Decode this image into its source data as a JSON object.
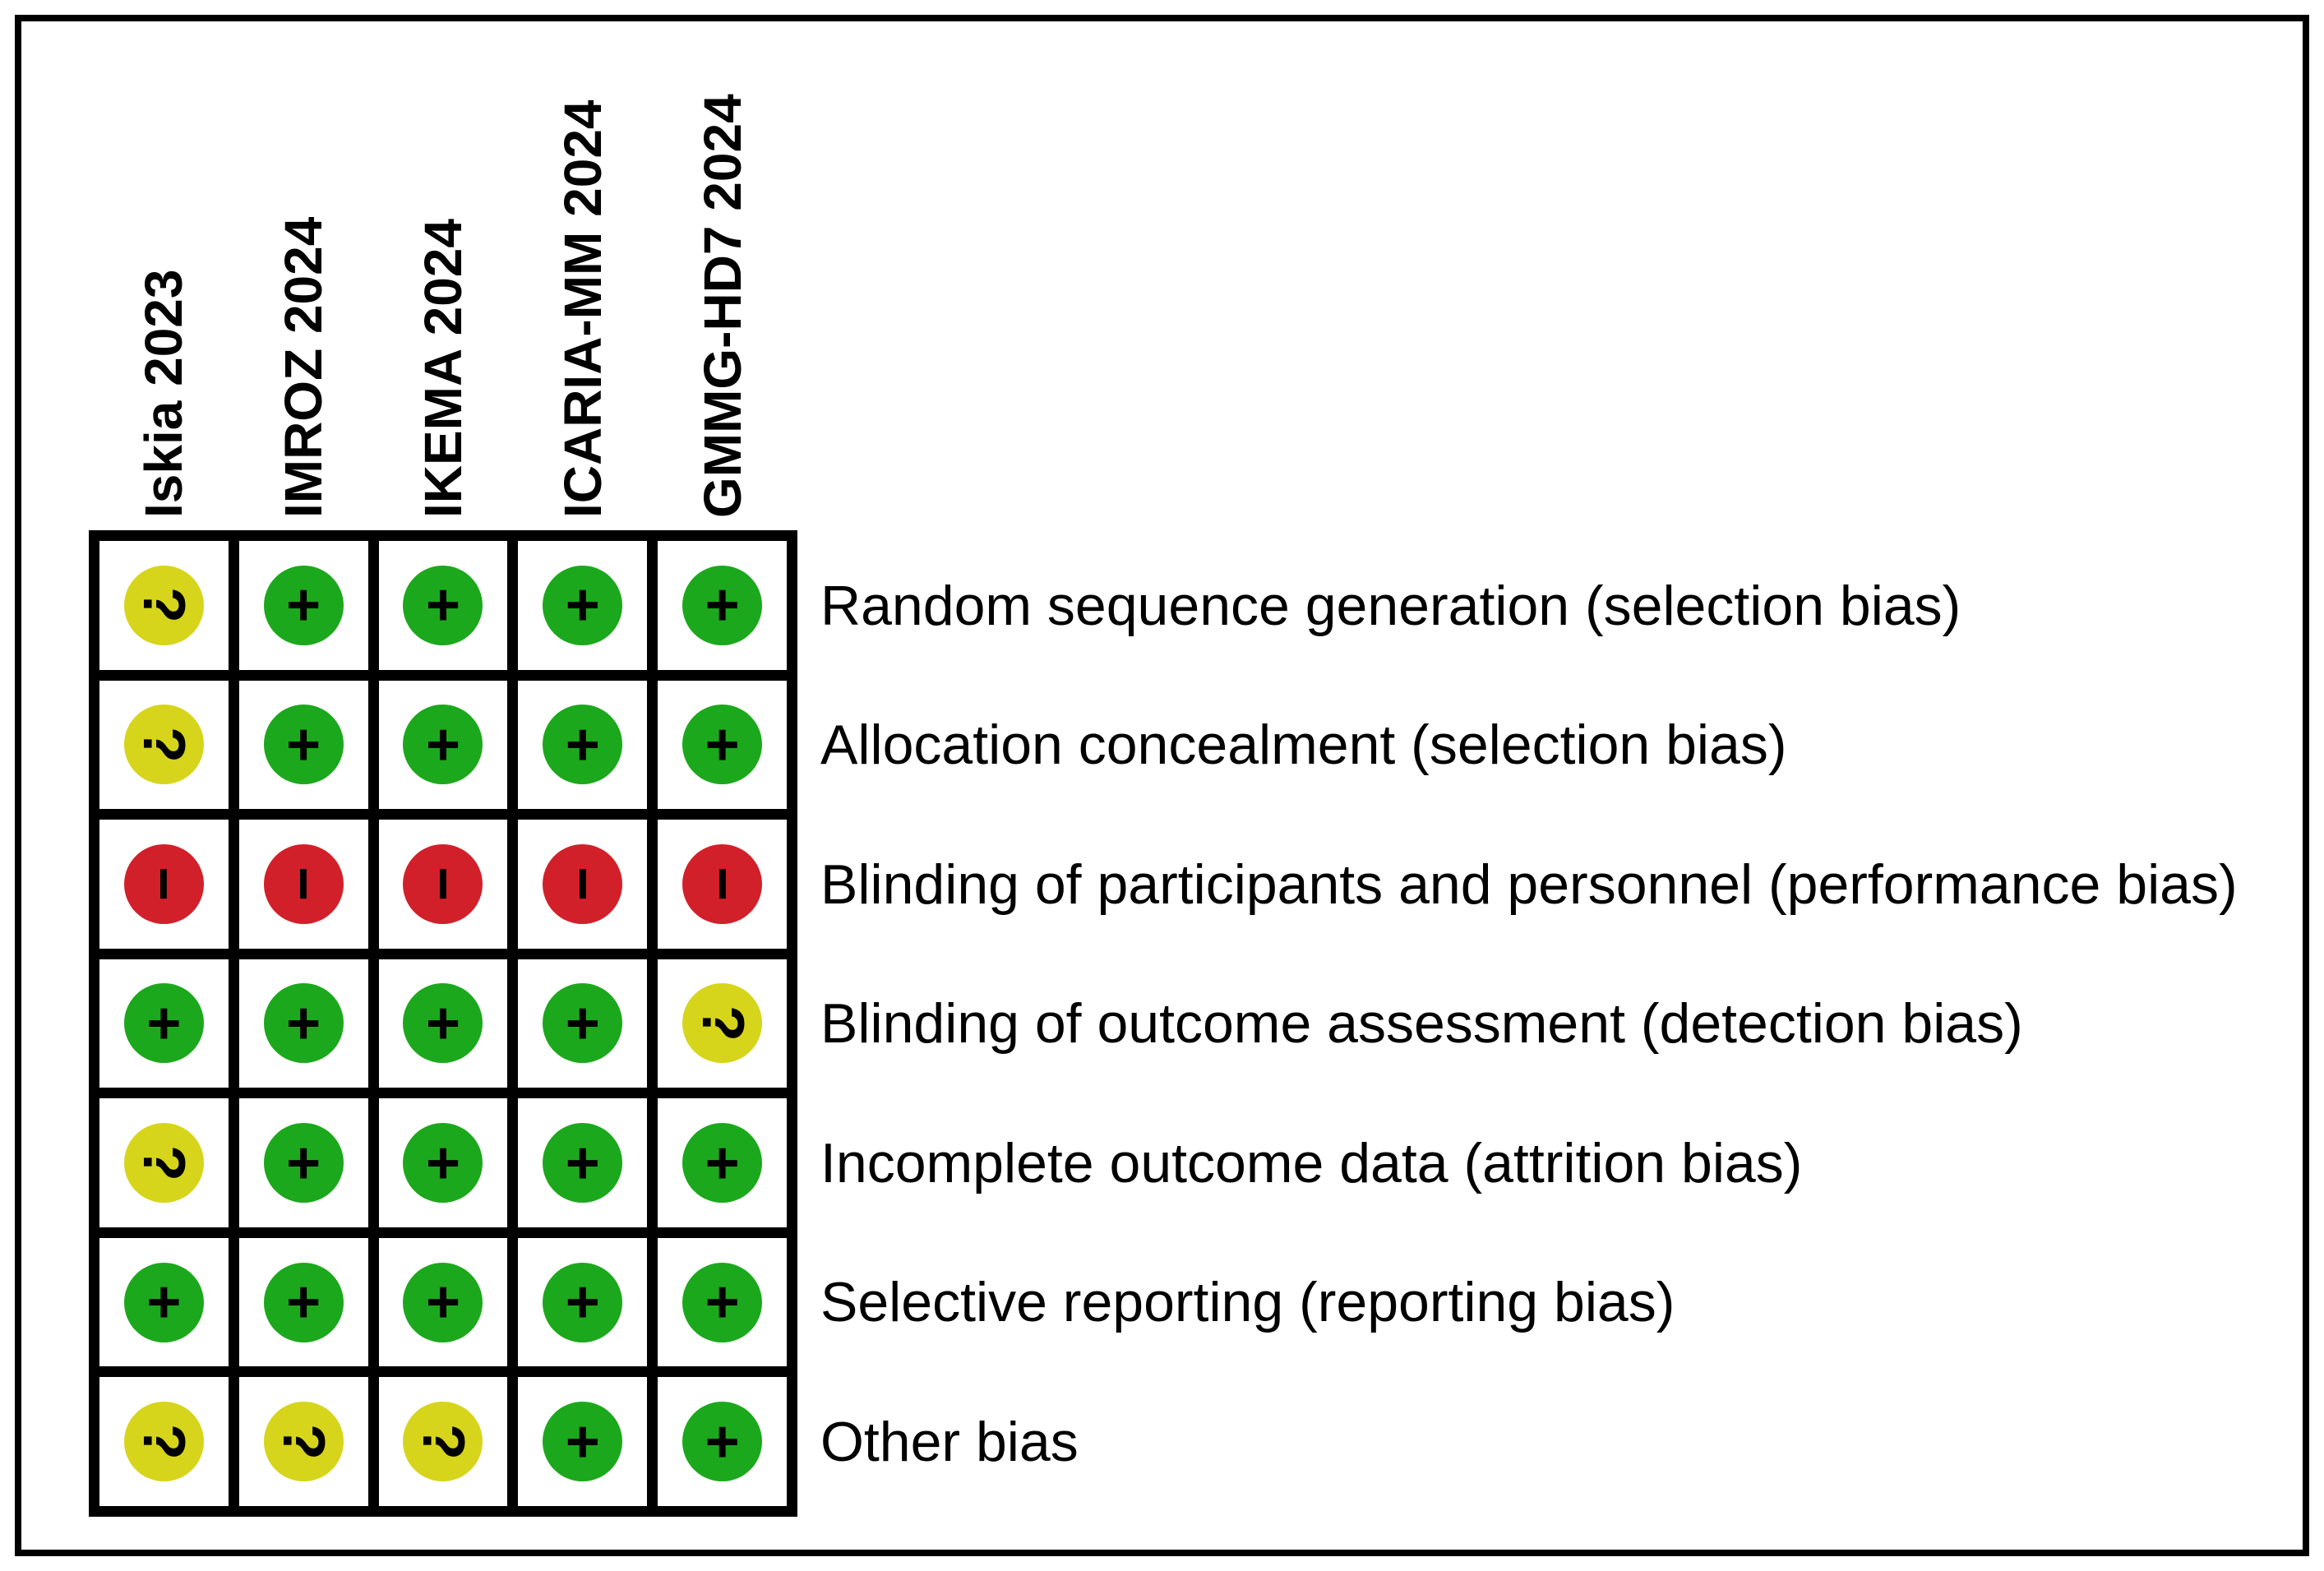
{
  "chart_data": {
    "type": "heatmap",
    "subtype": "risk-of-bias-summary",
    "columns": [
      "Iskia 2023",
      "IMROZ 2024",
      "IKEMA 2024",
      "ICARIA-MM 2024",
      "GMMG-HD7 2024"
    ],
    "rows": [
      "Random sequence generation (selection bias)",
      "Allocation concealment (selection bias)",
      "Blinding of participants and personnel (performance bias)",
      "Blinding of outcome assessment (detection bias)",
      "Incomplete outcome data (attrition bias)",
      "Selective reporting (reporting bias)",
      "Other bias"
    ],
    "values": [
      [
        "unclear",
        "low",
        "low",
        "low",
        "low"
      ],
      [
        "unclear",
        "low",
        "low",
        "low",
        "low"
      ],
      [
        "high",
        "high",
        "high",
        "high",
        "high"
      ],
      [
        "low",
        "low",
        "low",
        "low",
        "unclear"
      ],
      [
        "unclear",
        "low",
        "low",
        "low",
        "low"
      ],
      [
        "low",
        "low",
        "low",
        "low",
        "low"
      ],
      [
        "unclear",
        "unclear",
        "unclear",
        "low",
        "low"
      ]
    ],
    "symbols": {
      "low": "+",
      "unclear": "?",
      "high": "−"
    },
    "colors": {
      "low": "#1CA81C",
      "unclear": "#D6D51B",
      "high": "#D2202A",
      "grid_line": "#000000",
      "background": "#FFFFFF"
    },
    "legend_position": "none",
    "grid": true,
    "column_labels_rotated_degrees": -90
  }
}
